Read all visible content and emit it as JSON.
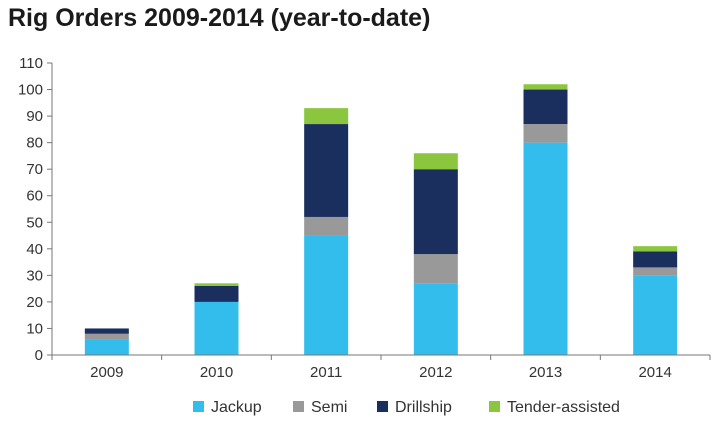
{
  "chart_data": {
    "type": "bar",
    "stacked": true,
    "title": "Rig Orders 2009-2014 (year-to-date)",
    "categories": [
      "2009",
      "2010",
      "2011",
      "2012",
      "2013",
      "2014"
    ],
    "series": [
      {
        "name": "Jackup",
        "color": "#33bdec",
        "values": [
          6,
          20,
          45,
          27,
          80,
          30
        ]
      },
      {
        "name": "Semi",
        "color": "#999999",
        "values": [
          2,
          0,
          7,
          11,
          7,
          3
        ]
      },
      {
        "name": "Drillship",
        "color": "#1b2f5e",
        "values": [
          2,
          6,
          35,
          32,
          13,
          6
        ]
      },
      {
        "name": "Tender-assisted",
        "color": "#8cc63f",
        "values": [
          0,
          1,
          6,
          6,
          2,
          2
        ]
      }
    ],
    "ylim": [
      0,
      110
    ],
    "yticks": [
      0,
      10,
      20,
      30,
      40,
      50,
      60,
      70,
      80,
      90,
      100,
      110
    ],
    "grid": false,
    "legend_position": "bottom"
  }
}
